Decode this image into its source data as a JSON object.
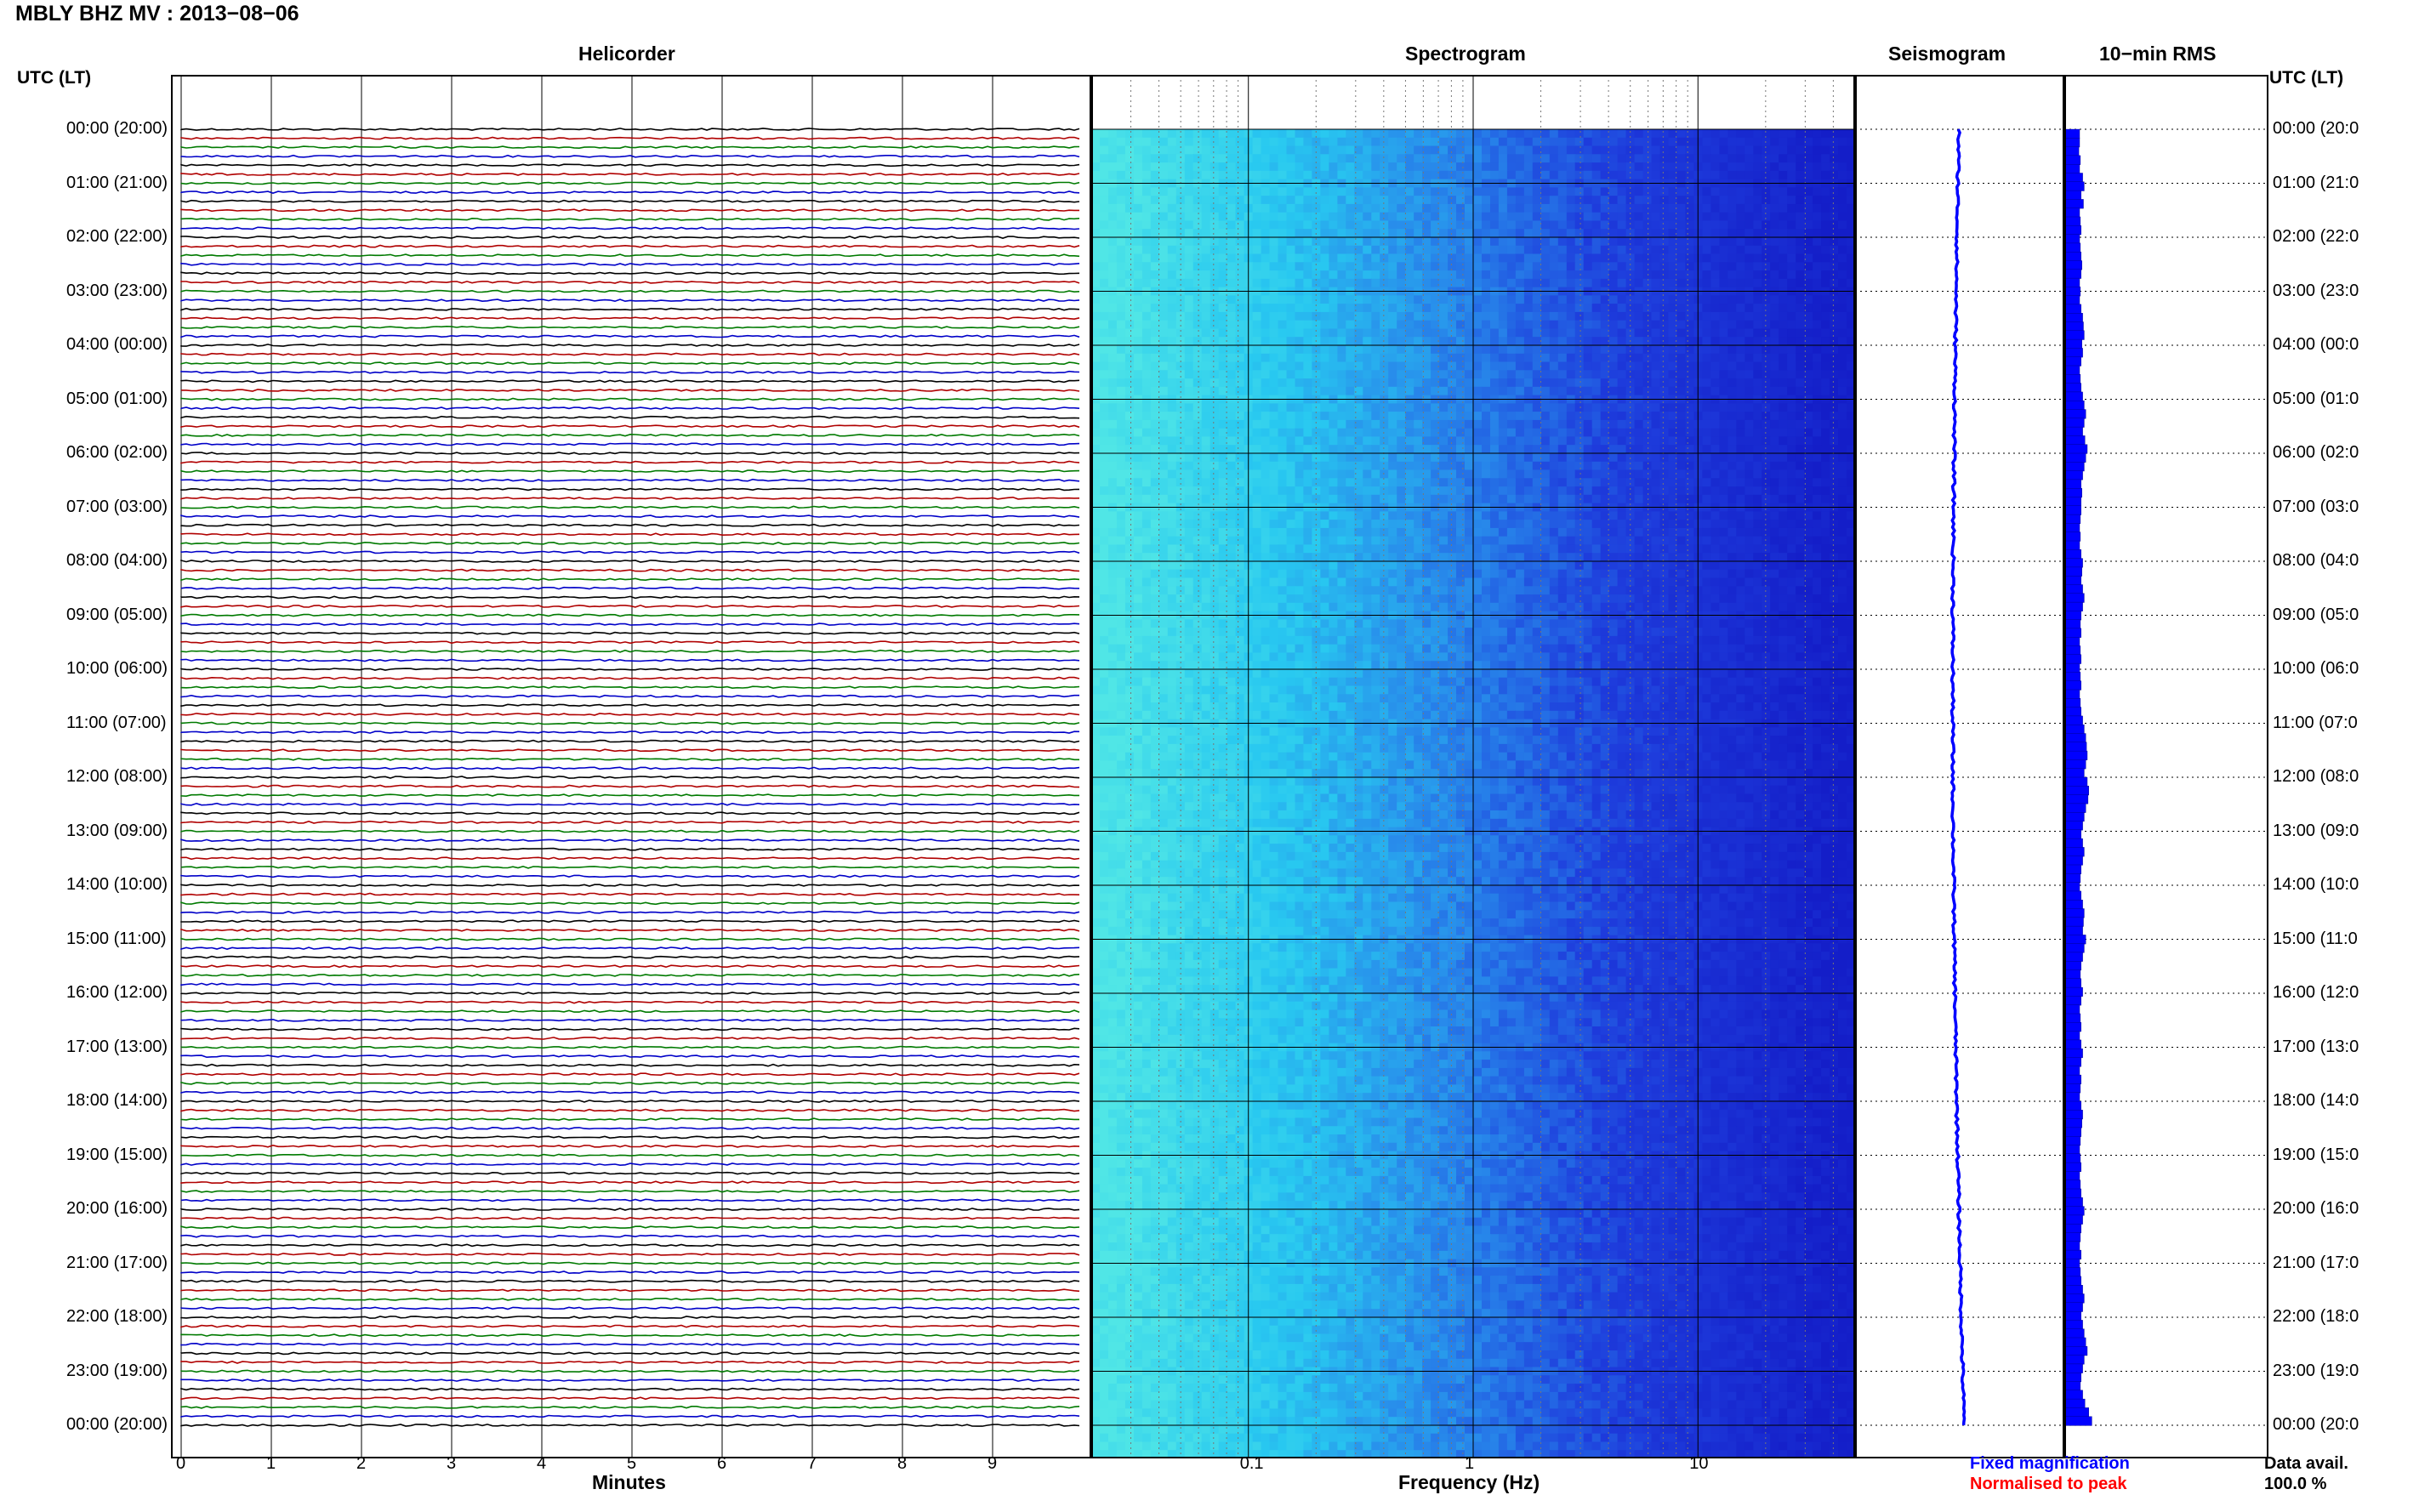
{
  "title": "MBLY BHZ MV : 2013−08−06",
  "panels": {
    "helicorder": "Helicorder",
    "spectrogram": "Spectrogram",
    "seismogram": "Seismogram",
    "rms": "10−min RMS"
  },
  "axis_left_label": "UTC (LT)",
  "axis_right_label": "UTC (LT)",
  "time_labels": [
    "00:00 (20:00)",
    "01:00 (21:00)",
    "02:00 (22:00)",
    "03:00 (23:00)",
    "04:00 (00:00)",
    "05:00 (01:00)",
    "06:00 (02:00)",
    "07:00 (03:00)",
    "08:00 (04:00)",
    "09:00 (05:00)",
    "10:00 (06:00)",
    "11:00 (07:00)",
    "12:00 (08:00)",
    "13:00 (09:00)",
    "14:00 (10:00)",
    "15:00 (11:00)",
    "16:00 (12:00)",
    "17:00 (13:00)",
    "18:00 (14:00)",
    "19:00 (15:00)",
    "20:00 (16:00)",
    "21:00 (17:00)",
    "22:00 (18:00)",
    "23:00 (19:00)",
    "00:00 (20:00)"
  ],
  "time_labels_right": [
    "00:00 (20:0",
    "01:00 (21:0",
    "02:00 (22:0",
    "03:00 (23:0",
    "04:00 (00:0",
    "05:00 (01:0",
    "06:00 (02:0",
    "07:00 (03:0",
    "08:00 (04:0",
    "09:00 (05:0",
    "10:00 (06:0",
    "11:00 (07:0",
    "12:00 (08:0",
    "13:00 (09:0",
    "14:00 (10:0",
    "15:00 (11:0",
    "16:00 (12:0",
    "17:00 (13:0",
    "18:00 (14:0",
    "19:00 (15:0",
    "20:00 (16:0",
    "21:00 (17:0",
    "22:00 (18:0",
    "23:00 (19:0",
    "00:00 (20:0"
  ],
  "legend": {
    "fixed": "Fixed magnification",
    "normalised": "Normalised to peak",
    "data_avail_label": "Data avail.",
    "data_avail_value": "100.0 %"
  },
  "colors": {
    "trace_cycle": [
      "#000000",
      "#b00000",
      "#007a00",
      "#0000c8"
    ],
    "fixed": "#0000ff",
    "normalised": "#ff0000",
    "rms_bar": "#0000ff"
  },
  "chart_data": [
    {
      "type": "line",
      "name": "helicorder",
      "title": "Helicorder",
      "xlabel": "Minutes",
      "ylabel": "UTC (LT)",
      "x_ticks": [
        "0",
        "1",
        "2",
        "3",
        "4",
        "5",
        "6",
        "7",
        "8",
        "9"
      ],
      "xlim": [
        0,
        10
      ],
      "rows_per_hour": 6,
      "hours": 24
    },
    {
      "type": "heatmap",
      "name": "spectrogram",
      "title": "Spectrogram",
      "xlabel": "Frequency (Hz)",
      "x_scale": "log",
      "x_ticks": [
        "0.1",
        "1",
        "10"
      ],
      "xlim": [
        0.02,
        50
      ]
    },
    {
      "type": "line",
      "name": "seismogram",
      "title": "Seismogram"
    },
    {
      "type": "bar",
      "name": "rms",
      "title": "10−min RMS",
      "values": [
        1.0,
        1.0,
        0.95,
        1.05,
        1.0,
        1.2,
        1.3,
        1.1,
        1.25,
        1.0,
        1.05,
        1.1,
        1.0,
        1.05,
        1.1,
        1.15,
        1.1,
        1.0,
        1.05,
        1.0,
        1.1,
        1.2,
        1.25,
        1.3,
        1.15,
        1.2,
        1.1,
        1.0,
        1.05,
        1.1,
        1.2,
        1.3,
        1.4,
        1.3,
        1.2,
        1.35,
        1.5,
        1.4,
        1.3,
        1.2,
        1.1,
        1.15,
        1.1,
        1.1,
        1.05,
        1.0,
        1.05,
        1.0,
        1.1,
        1.2,
        1.15,
        1.1,
        1.2,
        1.3,
        1.2,
        1.1,
        1.05,
        1.1,
        1.0,
        1.05,
        1.1,
        1.0,
        1.05,
        1.1,
        1.0,
        1.05,
        1.1,
        1.2,
        1.3,
        1.4,
        1.45,
        1.5,
        1.4,
        1.3,
        1.5,
        1.6,
        1.55,
        1.4,
        1.3,
        1.2,
        1.1,
        1.2,
        1.3,
        1.2,
        1.1,
        1.05,
        1.0,
        1.1,
        1.2,
        1.3,
        1.25,
        1.2,
        1.4,
        1.3,
        1.2,
        1.1,
        1.05,
        1.1,
        1.2,
        1.1,
        1.0,
        1.05,
        1.1,
        1.0,
        1.1,
        1.2,
        1.1,
        1.0,
        1.1,
        1.05,
        1.0,
        1.1,
        1.2,
        1.15,
        1.1,
        1.05,
        1.0,
        1.05,
        1.1,
        1.0,
        1.05,
        1.1,
        1.2,
        1.3,
        1.2,
        1.1,
        1.05,
        1.0,
        1.1,
        1.0,
        1.05,
        1.1,
        1.2,
        1.3,
        1.2,
        1.1,
        1.2,
        1.3,
        1.4,
        1.5,
        1.3,
        1.2,
        1.1,
        1.05,
        1.2,
        1.35,
        1.6,
        1.8
      ]
    }
  ]
}
